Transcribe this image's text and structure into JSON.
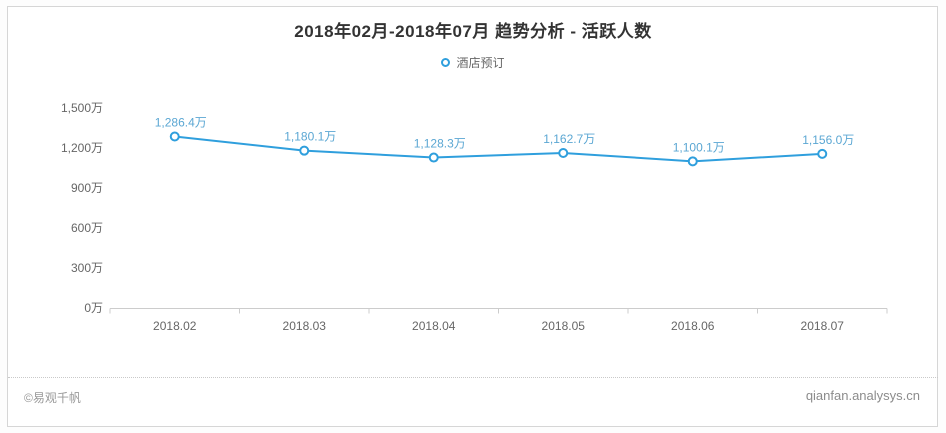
{
  "page": {
    "title": "2018年02月-2018年07月  趋势分析 - 活跃人数",
    "footer_left": "©易观千帆",
    "footer_right": "qianfan.analysys.cn"
  },
  "legend": {
    "items": [
      {
        "label": "酒店预订",
        "marker": "hollow-circle",
        "color": "#2f9fdd"
      }
    ]
  },
  "chart_data": {
    "type": "line",
    "title": "2018年02月-2018年07月  趋势分析 - 活跃人数",
    "categories": [
      "2018.02",
      "2018.03",
      "2018.04",
      "2018.05",
      "2018.06",
      "2018.07"
    ],
    "series": [
      {
        "name": "酒店预订",
        "values": [
          1286.4,
          1180.1,
          1128.3,
          1162.7,
          1100.1,
          1156.0
        ],
        "point_labels": [
          "1,286.4万",
          "1,180.1万",
          "1,128.3万",
          "1,162.7万",
          "1,100.1万",
          "1,156.0万"
        ]
      }
    ],
    "xlabel": "",
    "ylabel": "",
    "unit": "万",
    "ylim": [
      0,
      1500
    ],
    "ytick_values": [
      0,
      300,
      600,
      900,
      1200,
      1500
    ],
    "ytick_labels": [
      "0万",
      "300万",
      "600万",
      "900万",
      "1,200万",
      "1,500万"
    ],
    "grid": false,
    "legend_position": "top",
    "colors": {
      "line": "#2f9fdd",
      "marker_fill": "#ffffff",
      "point_label": "#5ba7d3",
      "axis_line": "#cccccc",
      "tick_text": "#666666"
    }
  }
}
